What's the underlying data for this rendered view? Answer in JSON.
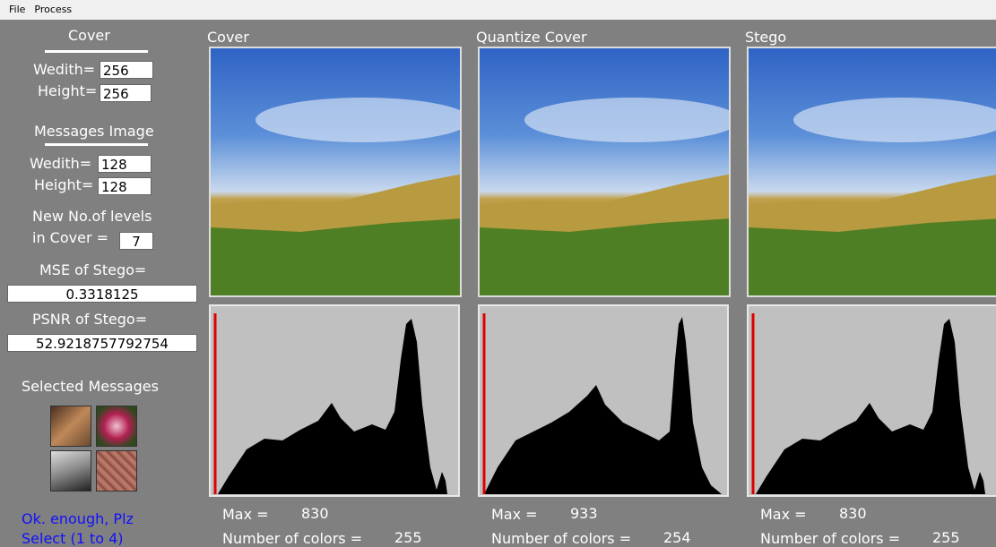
{
  "menu": [
    "File",
    "Process"
  ],
  "left_panel": {
    "cover_heading": "Cover",
    "cover_width_label": "Wedith=",
    "cover_width": "256",
    "cover_height_label": "Height=",
    "cover_height": "256",
    "messages_heading": "Messages Image",
    "message_width_label": "Wedith=",
    "message_width": "128",
    "message_height_label": "Height=",
    "message_height": "128",
    "levels_label_line1": "New No.of levels",
    "levels_label_line2": "in Cover =",
    "levels": "7",
    "mse_label": "MSE of Stego=",
    "mse": "0.3318125",
    "psnr_label": "PSNR of Stego=",
    "psnr": "52.9218757792754",
    "selected_heading": "Selected Messages",
    "status_line1": "Ok. enough, Plz",
    "status_line2": "Select (1 to 4)"
  },
  "panels": [
    {
      "title": "Cover",
      "max_label": "Max =",
      "max": "830",
      "colors_label": "Number of colors =",
      "colors": "255"
    },
    {
      "title": "Quantize Cover",
      "max_label": "Max =",
      "max": "933",
      "colors_label": "Number of colors =",
      "colors": "254"
    },
    {
      "title": "Stego",
      "max_label": "Max =",
      "max": "830",
      "colors_label": "Number of colors =",
      "colors": "255"
    }
  ]
}
